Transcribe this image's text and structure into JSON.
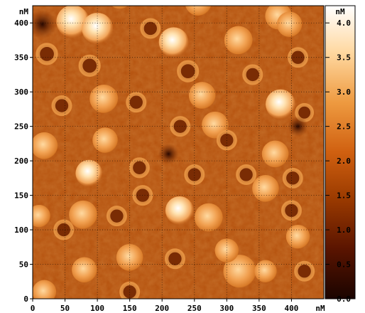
{
  "chart_data": {
    "type": "heatmap",
    "x_unit": "nM",
    "y_unit": "nM",
    "colorbar_unit": "nM",
    "xlim": [
      0,
      450
    ],
    "ylim": [
      0,
      425
    ],
    "x_ticks": [
      0,
      50,
      100,
      150,
      200,
      250,
      300,
      350,
      400
    ],
    "y_ticks": [
      0,
      50,
      100,
      150,
      200,
      250,
      300,
      350,
      400
    ],
    "colorbar_range": [
      0.0,
      4.25
    ],
    "colorbar_ticks": [
      "0.0",
      "0.5",
      "1.0",
      "1.5",
      "2.0",
      "2.5",
      "3.0",
      "3.5",
      "4.0"
    ],
    "grid": true,
    "colormap": [
      "#1a0400",
      "#5a1400",
      "#9a3a00",
      "#d06010",
      "#ee9a40",
      "#ffd8a0",
      "#ffffff"
    ],
    "features": [
      {
        "type": "particle",
        "x": 62,
        "y": 402,
        "r": 22,
        "h": 4.1
      },
      {
        "type": "particle",
        "x": 100,
        "y": 392,
        "r": 21,
        "h": 3.6
      },
      {
        "type": "particle",
        "x": 218,
        "y": 372,
        "r": 20,
        "h": 3.9
      },
      {
        "type": "particle",
        "x": 383,
        "y": 282,
        "r": 20,
        "h": 3.6
      },
      {
        "type": "particle",
        "x": 87,
        "y": 182,
        "r": 18,
        "h": 3.7
      },
      {
        "type": "particle",
        "x": 227,
        "y": 128,
        "r": 19,
        "h": 3.8
      },
      {
        "type": "particle",
        "x": 320,
        "y": 40,
        "r": 22,
        "h": 3.2
      },
      {
        "type": "particle",
        "x": 135,
        "y": 440,
        "r": 18,
        "h": 2.6
      },
      {
        "type": "particle",
        "x": 256,
        "y": 430,
        "r": 18,
        "h": 2.5
      },
      {
        "type": "particle",
        "x": 380,
        "y": 410,
        "r": 18,
        "h": 2.7
      },
      {
        "type": "particle",
        "x": 318,
        "y": 375,
        "r": 19,
        "h": 2.9
      },
      {
        "type": "particle",
        "x": 397,
        "y": 398,
        "r": 17,
        "h": 2.7
      },
      {
        "type": "particle",
        "x": 110,
        "y": 290,
        "r": 19,
        "h": 2.8
      },
      {
        "type": "particle",
        "x": 262,
        "y": 295,
        "r": 18,
        "h": 2.5
      },
      {
        "type": "particle",
        "x": 18,
        "y": 222,
        "r": 18,
        "h": 2.6
      },
      {
        "type": "particle",
        "x": 112,
        "y": 230,
        "r": 17,
        "h": 2.4
      },
      {
        "type": "particle",
        "x": 282,
        "y": 252,
        "r": 18,
        "h": 2.5
      },
      {
        "type": "particle",
        "x": 375,
        "y": 210,
        "r": 18,
        "h": 2.9
      },
      {
        "type": "particle",
        "x": 360,
        "y": 160,
        "r": 18,
        "h": 2.6
      },
      {
        "type": "particle",
        "x": 78,
        "y": 122,
        "r": 19,
        "h": 2.6
      },
      {
        "type": "particle",
        "x": 272,
        "y": 118,
        "r": 19,
        "h": 2.9
      },
      {
        "type": "particle",
        "x": 150,
        "y": 60,
        "r": 18,
        "h": 2.8
      },
      {
        "type": "particle",
        "x": 80,
        "y": 42,
        "r": 17,
        "h": 2.4
      },
      {
        "type": "particle",
        "x": 10,
        "y": 120,
        "r": 15,
        "h": 2.5
      },
      {
        "type": "particle",
        "x": 410,
        "y": 90,
        "r": 16,
        "h": 2.4
      },
      {
        "type": "particle",
        "x": 18,
        "y": 10,
        "r": 16,
        "h": 2.3
      },
      {
        "type": "particle",
        "x": 300,
        "y": 70,
        "r": 16,
        "h": 2.5
      },
      {
        "type": "particle",
        "x": 360,
        "y": 40,
        "r": 15,
        "h": 2.3
      },
      {
        "type": "ring",
        "x": 22,
        "y": 355,
        "r": 14,
        "h": 2.2
      },
      {
        "type": "ring",
        "x": 88,
        "y": 338,
        "r": 14,
        "h": 2.1
      },
      {
        "type": "ring",
        "x": 182,
        "y": 392,
        "r": 13,
        "h": 2.0
      },
      {
        "type": "ring",
        "x": 240,
        "y": 330,
        "r": 14,
        "h": 2.1
      },
      {
        "type": "ring",
        "x": 340,
        "y": 325,
        "r": 13,
        "h": 2.0
      },
      {
        "type": "ring",
        "x": 410,
        "y": 350,
        "r": 13,
        "h": 2.1
      },
      {
        "type": "ring",
        "x": 160,
        "y": 285,
        "r": 13,
        "h": 2.0
      },
      {
        "type": "ring",
        "x": 300,
        "y": 230,
        "r": 13,
        "h": 2.0
      },
      {
        "type": "ring",
        "x": 228,
        "y": 250,
        "r": 13,
        "h": 2.0
      },
      {
        "type": "ring",
        "x": 45,
        "y": 280,
        "r": 13,
        "h": 2.1
      },
      {
        "type": "ring",
        "x": 165,
        "y": 190,
        "r": 13,
        "h": 2.0
      },
      {
        "type": "ring",
        "x": 402,
        "y": 175,
        "r": 13,
        "h": 2.1
      },
      {
        "type": "ring",
        "x": 130,
        "y": 120,
        "r": 13,
        "h": 2.0
      },
      {
        "type": "ring",
        "x": 400,
        "y": 128,
        "r": 13,
        "h": 2.0
      },
      {
        "type": "ring",
        "x": 170,
        "y": 150,
        "r": 13,
        "h": 2.0
      },
      {
        "type": "ring",
        "x": 220,
        "y": 58,
        "r": 13,
        "h": 2.0
      },
      {
        "type": "ring",
        "x": 48,
        "y": 100,
        "r": 13,
        "h": 2.0
      },
      {
        "type": "ring",
        "x": 420,
        "y": 40,
        "r": 13,
        "h": 2.0
      },
      {
        "type": "ring",
        "x": 330,
        "y": 180,
        "r": 13,
        "h": 2.0
      },
      {
        "type": "ring",
        "x": 250,
        "y": 180,
        "r": 13,
        "h": 2.0
      },
      {
        "type": "ring",
        "x": 150,
        "y": 10,
        "r": 13,
        "h": 2.0
      },
      {
        "type": "ring",
        "x": 420,
        "y": 270,
        "r": 12,
        "h": 2.0
      },
      {
        "type": "pit",
        "x": 15,
        "y": 398,
        "r": 14,
        "h": 0.3
      },
      {
        "type": "pit",
        "x": 410,
        "y": 250,
        "r": 10,
        "h": 0.6
      },
      {
        "type": "pit",
        "x": 210,
        "y": 210,
        "r": 10,
        "h": 0.6
      }
    ]
  }
}
